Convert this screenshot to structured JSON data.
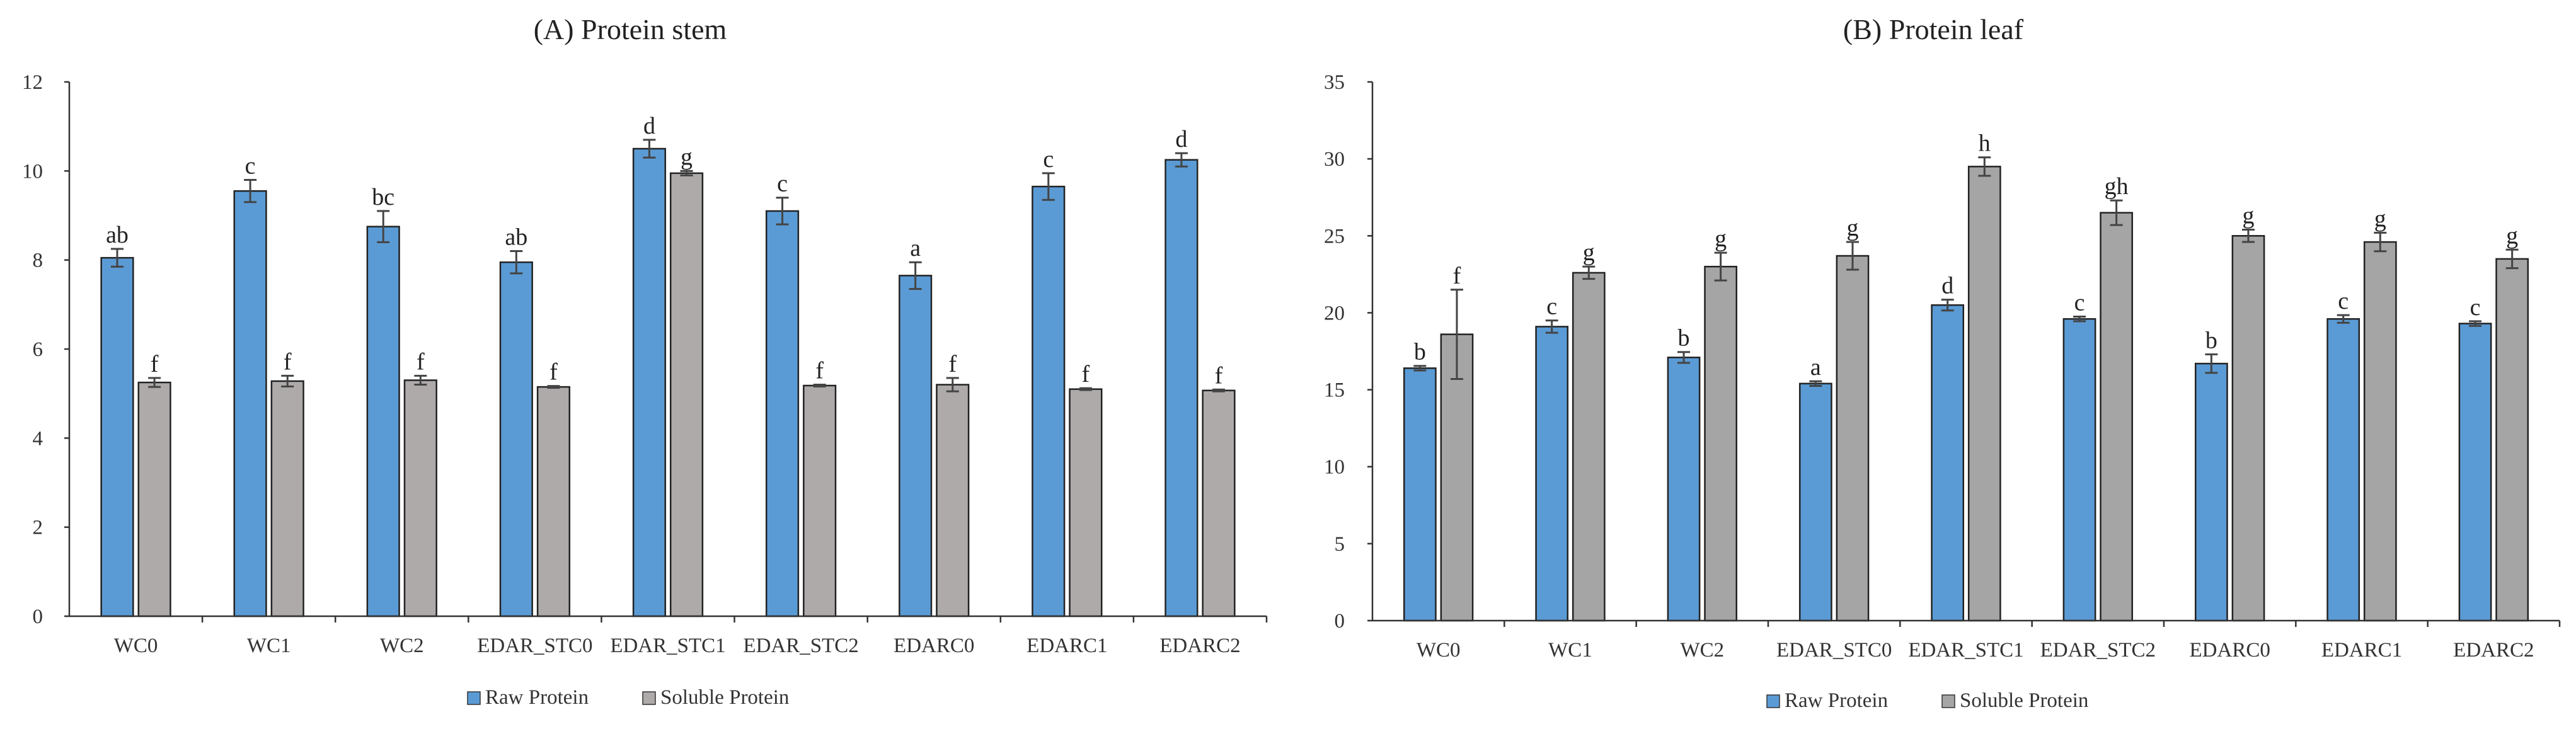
{
  "chart_data": [
    {
      "type": "bar",
      "title": "(A)  Protein stem",
      "categories": [
        "WC0",
        "WC1",
        "WC2",
        "EDAR_STC0",
        "EDAR_STC1",
        "EDAR_STC2",
        "EDARC0",
        "EDARC1",
        "EDARC2"
      ],
      "ylim": [
        0,
        12
      ],
      "yticks": [
        0,
        2,
        4,
        6,
        8,
        10,
        12
      ],
      "xlabel": "",
      "ylabel": "",
      "legend": "bottom",
      "series": [
        {
          "name": "Raw Protein",
          "color": "#5b9bd5",
          "values": [
            8.05,
            9.55,
            8.75,
            7.95,
            10.5,
            9.1,
            7.65,
            9.65,
            10.25
          ],
          "errors": [
            0.2,
            0.25,
            0.35,
            0.25,
            0.2,
            0.3,
            0.3,
            0.3,
            0.15
          ],
          "labels": [
            "ab",
            "c",
            "bc",
            "ab",
            "d",
            "c",
            "a",
            "c",
            "d"
          ]
        },
        {
          "name": "Soluble Protein",
          "color": "#aeaaaa",
          "values": [
            5.25,
            5.28,
            5.3,
            5.15,
            9.95,
            5.18,
            5.2,
            5.1,
            5.07
          ],
          "errors": [
            0.1,
            0.12,
            0.1,
            0.02,
            0.05,
            0.02,
            0.15,
            0.02,
            0.02
          ],
          "labels": [
            "f",
            "f",
            "f",
            "f",
            "g",
            "f",
            "f",
            "f",
            "f"
          ]
        }
      ]
    },
    {
      "type": "bar",
      "title": "(B)  Protein leaf",
      "categories": [
        "WC0",
        "WC1",
        "WC2",
        "EDAR_STC0",
        "EDAR_STC1",
        "EDAR_STC2",
        "EDARC0",
        "EDARC1",
        "EDARC2"
      ],
      "ylim": [
        0,
        35
      ],
      "yticks": [
        0,
        5,
        10,
        15,
        20,
        25,
        30,
        35
      ],
      "xlabel": "",
      "ylabel": "",
      "legend": "bottom",
      "series": [
        {
          "name": "Raw Protein",
          "color": "#5b9bd5",
          "values": [
            16.4,
            19.1,
            17.1,
            15.4,
            20.5,
            19.6,
            16.7,
            19.6,
            19.3
          ],
          "errors": [
            0.15,
            0.4,
            0.35,
            0.15,
            0.35,
            0.15,
            0.6,
            0.25,
            0.15
          ],
          "labels": [
            "b",
            "c",
            "b",
            "a",
            "d",
            "c",
            "b",
            "c",
            "c"
          ]
        },
        {
          "name": "Soluble Protein",
          "color": "#a5a5a5",
          "values": [
            18.6,
            22.6,
            23.0,
            23.7,
            29.5,
            26.5,
            25.0,
            24.6,
            23.5
          ],
          "errors": [
            2.9,
            0.4,
            0.9,
            0.9,
            0.6,
            0.8,
            0.4,
            0.6,
            0.6
          ],
          "labels": [
            "f",
            "g",
            "g",
            "g",
            "h",
            "gh",
            "g",
            "g",
            "g"
          ]
        }
      ]
    }
  ]
}
